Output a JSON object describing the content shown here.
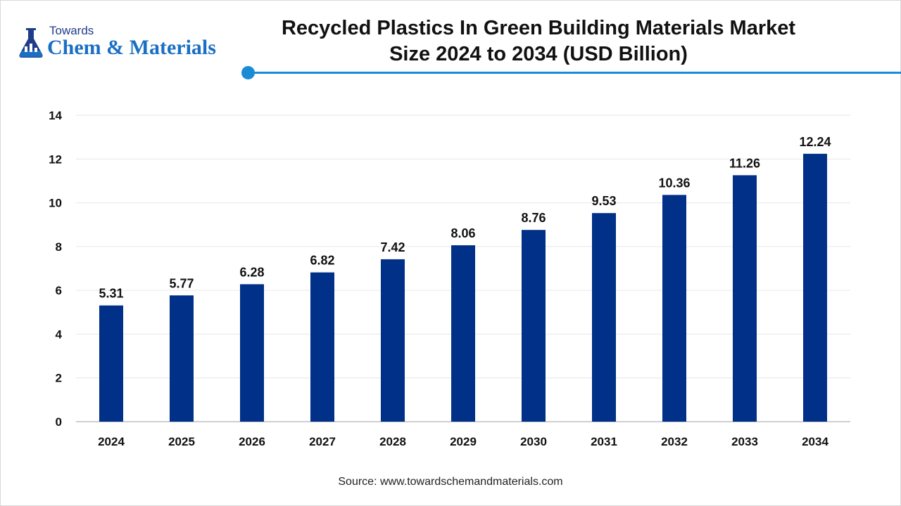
{
  "brand": {
    "towards": "Towards",
    "name": "Chem & Materials"
  },
  "title_line1": "Recycled Plastics In Green Building Materials Market",
  "title_line2": "Size 2024 to 2034 (USD Billion)",
  "source": "Source: www.towardschemandmaterials.com",
  "colors": {
    "bar": "#003087",
    "accent": "#1a8bd6"
  },
  "chart_data": {
    "type": "bar",
    "categories": [
      "2024",
      "2025",
      "2026",
      "2027",
      "2028",
      "2029",
      "2030",
      "2031",
      "2032",
      "2033",
      "2034"
    ],
    "values": [
      5.31,
      5.77,
      6.28,
      6.82,
      7.42,
      8.06,
      8.76,
      9.53,
      10.36,
      11.26,
      12.24
    ],
    "value_labels": [
      "5.31",
      "5.77",
      "6.28",
      "6.82",
      "7.42",
      "8.06",
      "8.76",
      "9.53",
      "10.36",
      "11.26",
      "12.24"
    ],
    "yticks": [
      "0",
      "2",
      "4",
      "6",
      "8",
      "10",
      "12",
      "14"
    ],
    "ylim": [
      0,
      14
    ],
    "grid": true,
    "legend": "none"
  }
}
